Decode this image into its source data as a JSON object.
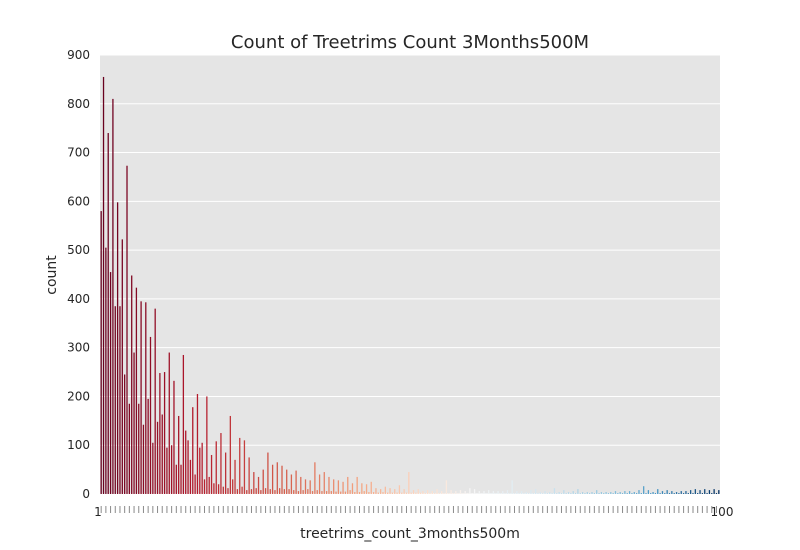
{
  "chart_data": {
    "type": "bar",
    "title": "Count of Treetrims Count 3Months500M",
    "xlabel": "treetrims_count_3months500m",
    "ylabel": "count",
    "ylim": [
      0,
      900
    ],
    "yticks": [
      0,
      100,
      200,
      300,
      400,
      500,
      600,
      700,
      800,
      900
    ],
    "x_tick_first": "1",
    "x_tick_last": "100",
    "grid": true,
    "palette": "RdBu",
    "series": [
      {
        "name": "count",
        "values": [
          580,
          855,
          505,
          740,
          455,
          810,
          385,
          598,
          385,
          522,
          245,
          673,
          185,
          448,
          290,
          423,
          185,
          395,
          142,
          393,
          195,
          322,
          105,
          380,
          148,
          248,
          163,
          250,
          95,
          290,
          100,
          232,
          60,
          160,
          60,
          285,
          130,
          110,
          70,
          178,
          40,
          205,
          95,
          105,
          30,
          200,
          35,
          80,
          22,
          108,
          20,
          125,
          15,
          85,
          12,
          160,
          30,
          70,
          10,
          115,
          15,
          110,
          8,
          75,
          10,
          45,
          12,
          35,
          8,
          50,
          12,
          85,
          10,
          60,
          8,
          65,
          12,
          58,
          10,
          50,
          10,
          40,
          8,
          48,
          6,
          35,
          8,
          30,
          10,
          28,
          6,
          65,
          8,
          40,
          6,
          45,
          6,
          35,
          6,
          30,
          5,
          28,
          5,
          25,
          5,
          35,
          8,
          22,
          4,
          35,
          4,
          22,
          6,
          20,
          4,
          25,
          4,
          12,
          3,
          10,
          4,
          15,
          3,
          12,
          3,
          10,
          3,
          18,
          3,
          10,
          3,
          45,
          3,
          8,
          3,
          10,
          3,
          6,
          2,
          8,
          2,
          6,
          2,
          10,
          2,
          6,
          2,
          28,
          2,
          8,
          2,
          6,
          2,
          8,
          2,
          6,
          2,
          12,
          2,
          10,
          2,
          6,
          2,
          6,
          2,
          8,
          2,
          6,
          2,
          6,
          2,
          6,
          2,
          8,
          2,
          28,
          2,
          6,
          2,
          6,
          2,
          4,
          2,
          8,
          2,
          10,
          2,
          4,
          2,
          6,
          2,
          4,
          2,
          12,
          2,
          4,
          2,
          8,
          2,
          4,
          2,
          6,
          2,
          10,
          2,
          4,
          2,
          4,
          2,
          4,
          2,
          8,
          2,
          4,
          2,
          4,
          2,
          4,
          2,
          6,
          2,
          4,
          2,
          6,
          2,
          6,
          2,
          4,
          2,
          8,
          2,
          16,
          2,
          8,
          2,
          4,
          2,
          10,
          2,
          6,
          2,
          8,
          2,
          6,
          2,
          4,
          2,
          6,
          2,
          6,
          2,
          8,
          2,
          10,
          2,
          8,
          2,
          10,
          2,
          8,
          2,
          10,
          2,
          8
        ]
      }
    ]
  }
}
